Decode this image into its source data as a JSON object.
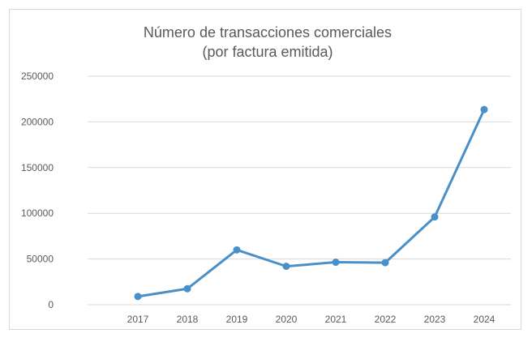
{
  "chart_data": {
    "type": "line",
    "title": [
      "Número de transacciones comerciales",
      "(por factura emitida)"
    ],
    "xlabel": "",
    "ylabel": "",
    "categories": [
      "2017",
      "2018",
      "2019",
      "2020",
      "2021",
      "2022",
      "2023",
      "2024"
    ],
    "series": [
      {
        "name": "Número de transacciones comerciales",
        "values": [
          9000,
          17500,
          60000,
          42000,
          46500,
          46000,
          96000,
          213500
        ]
      }
    ],
    "ylim": [
      0,
      250000
    ],
    "yticks": [
      0,
      50000,
      100000,
      150000,
      200000,
      250000
    ],
    "ytick_labels": [
      "0",
      "50000",
      "100000",
      "150000",
      "200000",
      "250000"
    ],
    "grid": true,
    "legend": "none",
    "colors": {
      "line": "#4a90c8",
      "grid": "#d9d9d9",
      "text": "#595959"
    }
  }
}
